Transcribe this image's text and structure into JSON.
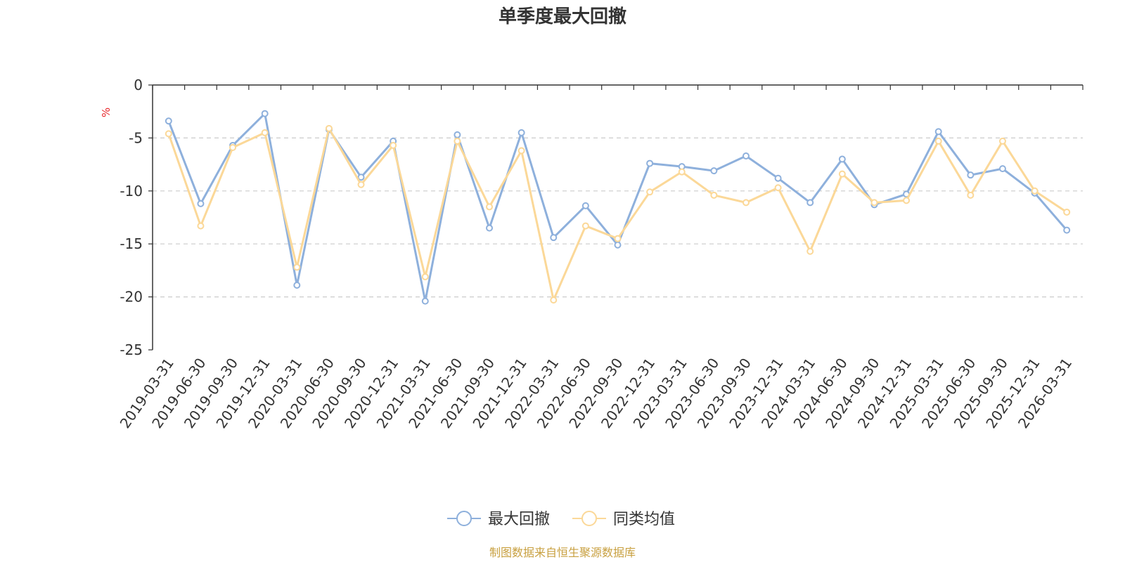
{
  "colors": {
    "series_0": "#8eb0dc",
    "series_1": "#fbd898",
    "unit": "#e8262a",
    "source": "#c8a040",
    "axis": "#333333",
    "grid": "#cccccc"
  },
  "footer": {
    "source": "制图数据来自恒生聚源数据库"
  },
  "chart_data": {
    "type": "line",
    "title": "单季度最大回撤",
    "ylabel": "%",
    "ylim": [
      -25,
      0
    ],
    "yticks": [
      0,
      -5,
      -10,
      -15,
      -20,
      -25
    ],
    "grid": "horizontal-dashed",
    "legend_position": "bottom-center",
    "x": [
      "2019-03-31",
      "2019-06-30",
      "2019-09-30",
      "2019-12-31",
      "2020-03-31",
      "2020-06-30",
      "2020-09-30",
      "2020-12-31",
      "2021-03-31",
      "2021-06-30",
      "2021-09-30",
      "2021-12-31",
      "2022-03-31",
      "2022-06-30",
      "2022-09-30",
      "2022-12-31",
      "2023-03-31",
      "2023-06-30",
      "2023-09-30",
      "2023-12-31",
      "2024-03-31",
      "2024-06-30",
      "2024-09-30",
      "2024-12-31",
      "2025-03-31",
      "2025-06-30",
      "2025-09-30",
      "2025-12-31",
      "2026-03-31"
    ],
    "series": [
      {
        "name": "最大回撤",
        "values": [
          -3.4,
          -11.2,
          -5.7,
          -2.7,
          -18.9,
          -4.2,
          -8.7,
          -5.3,
          -20.4,
          -4.7,
          -13.5,
          -4.5,
          -14.4,
          -11.4,
          -15.1,
          -7.4,
          -7.7,
          -8.1,
          -6.7,
          -8.8,
          -11.1,
          -7.0,
          -11.3,
          -10.3,
          -4.4,
          -8.5,
          -7.9,
          -10.2,
          -13.7
        ]
      },
      {
        "name": "同类均值",
        "values": [
          -4.6,
          -13.3,
          -5.9,
          -4.5,
          -17.2,
          -4.1,
          -9.4,
          -5.7,
          -18.1,
          -5.3,
          -11.5,
          -6.2,
          -20.3,
          -13.3,
          -14.5,
          -10.1,
          -8.2,
          -10.4,
          -11.1,
          -9.7,
          -15.7,
          -8.4,
          -11.1,
          -10.9,
          -5.3,
          -10.4,
          -5.3,
          -10.0,
          -12.0
        ]
      }
    ]
  }
}
